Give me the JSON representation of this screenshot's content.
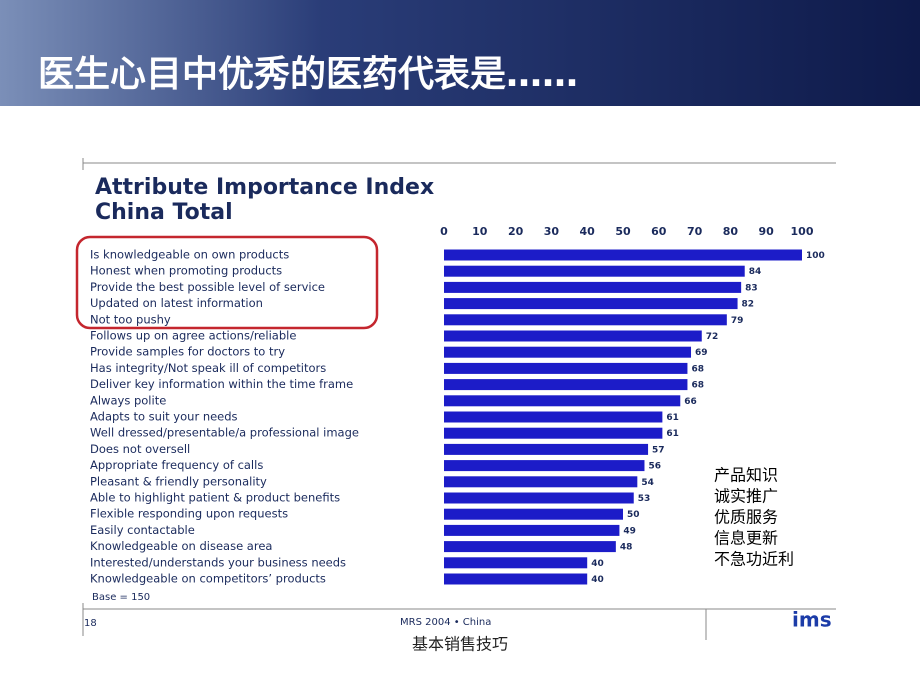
{
  "slide": {
    "title": "医生心目中优秀的医药代表是……",
    "caption": "基本销售技巧",
    "notes": [
      "产品知识",
      "诚实推广",
      "优质服务",
      "信息更新",
      "不急功近利"
    ],
    "page_number": "18",
    "source": "MRS 2004 • China",
    "logo": "ims"
  },
  "chart_data": {
    "type": "bar",
    "orientation": "horizontal",
    "title": "Attribute Importance Index",
    "subtitle": "China Total",
    "base_note": "Base = 150",
    "color": "#1c1cc8",
    "categories": [
      "Is knowledgeable on own products",
      "Honest when promoting products",
      "Provide the best possible level of service",
      "Updated on latest information",
      "Not too pushy",
      "Follows up on agree actions/reliable",
      "Provide samples for doctors to try",
      "Has integrity/Not speak ill of competitors",
      "Deliver key information within the time frame",
      "Always polite",
      "Adapts to suit your needs",
      "Well dressed/presentable/a professional image",
      "Does not oversell",
      "Appropriate frequency of calls",
      "Pleasant & friendly personality",
      "Able to highlight patient & product benefits",
      "Flexible responding upon requests",
      "Easily contactable",
      "Knowledgeable on disease area",
      "Interested/understands your business needs",
      "Knowledgeable on competitors’ products"
    ],
    "values": [
      100,
      84,
      83,
      82,
      79,
      72,
      69,
      68,
      68,
      66,
      61,
      61,
      57,
      56,
      54,
      53,
      50,
      49,
      48,
      40,
      40
    ],
    "xlim": [
      0,
      100
    ],
    "xticks": [
      0,
      10,
      20,
      30,
      40,
      50,
      60,
      70,
      80,
      90,
      100
    ]
  }
}
